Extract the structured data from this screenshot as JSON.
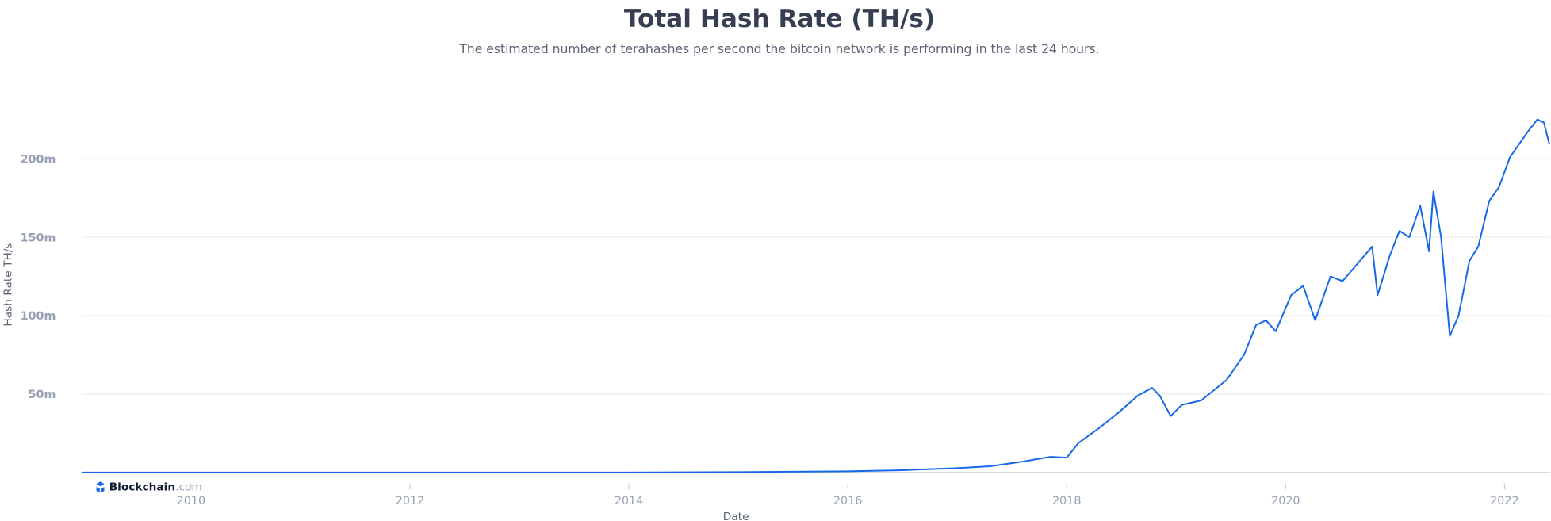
{
  "chart_data": {
    "type": "line",
    "title": "Total Hash Rate (TH/s)",
    "subtitle": "The estimated number of terahashes per second the bitcoin network is performing in the last 24 hours.",
    "y_label": "Hash Rate TH/s",
    "x_label": "Date",
    "watermark": {
      "brand": "Blockchain",
      "domain": ".com"
    },
    "xlim": [
      2009.0,
      2022.42
    ],
    "xticks": [
      2010,
      2012,
      2014,
      2016,
      2018,
      2020,
      2022
    ],
    "ylim": [
      0,
      240000000
    ],
    "yticks": [
      {
        "value": 50000000,
        "label": "50m"
      },
      {
        "value": 100000000,
        "label": "100m"
      },
      {
        "value": 150000000,
        "label": "150m"
      },
      {
        "value": 200000000,
        "label": "200m"
      }
    ],
    "grid": true,
    "x": [
      2009.0,
      2010.0,
      2011.0,
      2012.0,
      2013.0,
      2014.0,
      2015.0,
      2016.0,
      2016.5,
      2017.0,
      2017.3,
      2017.6,
      2017.85,
      2018.0,
      2018.11,
      2018.29,
      2018.47,
      2018.65,
      2018.78,
      2018.85,
      2018.95,
      2019.05,
      2019.23,
      2019.46,
      2019.62,
      2019.73,
      2019.82,
      2019.91,
      2020.05,
      2020.16,
      2020.27,
      2020.41,
      2020.52,
      2020.68,
      2020.79,
      2020.84,
      2020.95,
      2021.04,
      2021.13,
      2021.23,
      2021.31,
      2021.35,
      2021.42,
      2021.5,
      2021.58,
      2021.68,
      2021.76,
      2021.86,
      2021.95,
      2022.05,
      2022.12,
      2022.21,
      2022.3,
      2022.36,
      2022.41
    ],
    "series": [
      {
        "name": "Hash Rate",
        "color": "#1568e6",
        "values": [
          0,
          0,
          0,
          0,
          1000,
          10000,
          300000,
          800000,
          1500000,
          2800000,
          4000000,
          7000000,
          10000000,
          9500000,
          19000000,
          28000000,
          38000000,
          49000000,
          54000000,
          49000000,
          36000000,
          43000000,
          46000000,
          59000000,
          75000000,
          94000000,
          97000000,
          90000000,
          113000000,
          119000000,
          97000000,
          125000000,
          122000000,
          135000000,
          144000000,
          113000000,
          138000000,
          154000000,
          150000000,
          170000000,
          141000000,
          179000000,
          150000000,
          87000000,
          100000000,
          135000000,
          144000000,
          173000000,
          182000000,
          201000000,
          208000000,
          217000000,
          225000000,
          223000000,
          209000000
        ]
      }
    ]
  }
}
